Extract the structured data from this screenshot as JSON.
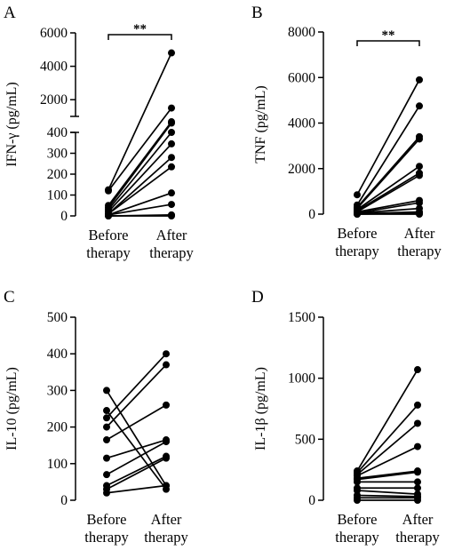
{
  "colors": {
    "ink": "#000000",
    "background": "#ffffff"
  },
  "chart_data": [
    {
      "panel": "A",
      "type": "line",
      "ylabel": "IFN-γ (pg/mL)",
      "categories": [
        "Before therapy",
        "After therapy"
      ],
      "category_lines": [
        [
          "Before",
          "therapy"
        ],
        [
          "After",
          "therapy"
        ]
      ],
      "broken_axis": true,
      "segments": [
        {
          "range": [
            0,
            400
          ],
          "ticks": [
            0,
            100,
            200,
            300,
            400
          ]
        },
        {
          "range": [
            1000,
            6000
          ],
          "ticks": [
            2000,
            4000,
            6000
          ]
        }
      ],
      "significance": "**",
      "pairs": [
        [
          125,
          4800
        ],
        [
          120,
          1500
        ],
        [
          50,
          680
        ],
        [
          40,
          600
        ],
        [
          30,
          400
        ],
        [
          20,
          345
        ],
        [
          10,
          280
        ],
        [
          10,
          235
        ],
        [
          5,
          110
        ],
        [
          5,
          55
        ],
        [
          0,
          5
        ],
        [
          0,
          0
        ]
      ]
    },
    {
      "panel": "B",
      "type": "line",
      "ylabel": "TNF (pg/mL)",
      "categories": [
        "Before therapy",
        "After therapy"
      ],
      "category_lines": [
        [
          "Before",
          "therapy"
        ],
        [
          "After",
          "therapy"
        ]
      ],
      "ylim": [
        0,
        8000
      ],
      "ticks": [
        0,
        2000,
        4000,
        6000,
        8000
      ],
      "significance": "**",
      "pairs": [
        [
          850,
          5900
        ],
        [
          400,
          4750
        ],
        [
          300,
          3400
        ],
        [
          250,
          3300
        ],
        [
          200,
          2100
        ],
        [
          150,
          1800
        ],
        [
          100,
          1700
        ],
        [
          100,
          600
        ],
        [
          50,
          500
        ],
        [
          50,
          250
        ],
        [
          20,
          100
        ],
        [
          0,
          50
        ],
        [
          0,
          0
        ]
      ]
    },
    {
      "panel": "C",
      "type": "line",
      "ylabel": "IL-10 (pg/mL)",
      "categories": [
        "Before therapy",
        "After therapy"
      ],
      "category_lines": [
        [
          "Before",
          "therapy"
        ],
        [
          "After",
          "therapy"
        ]
      ],
      "ylim": [
        0,
        500
      ],
      "ticks": [
        0,
        100,
        200,
        300,
        400,
        500
      ],
      "pairs": [
        [
          300,
          40
        ],
        [
          245,
          30
        ],
        [
          225,
          400
        ],
        [
          200,
          370
        ],
        [
          165,
          260
        ],
        [
          115,
          165
        ],
        [
          70,
          160
        ],
        [
          40,
          120
        ],
        [
          30,
          115
        ],
        [
          20,
          40
        ]
      ]
    },
    {
      "panel": "D",
      "type": "line",
      "ylabel": "IL-1β (pg/mL)",
      "categories": [
        "Before therapy",
        "After therapy"
      ],
      "category_lines": [
        [
          "Before",
          "therapy"
        ],
        [
          "After",
          "therapy"
        ]
      ],
      "ylim": [
        0,
        1500
      ],
      "ticks": [
        0,
        500,
        1000,
        1500
      ],
      "pairs": [
        [
          240,
          1070
        ],
        [
          225,
          780
        ],
        [
          210,
          630
        ],
        [
          200,
          440
        ],
        [
          180,
          240
        ],
        [
          170,
          230
        ],
        [
          150,
          150
        ],
        [
          100,
          100
        ],
        [
          80,
          50
        ],
        [
          40,
          30
        ],
        [
          20,
          20
        ],
        [
          0,
          0
        ]
      ]
    }
  ]
}
